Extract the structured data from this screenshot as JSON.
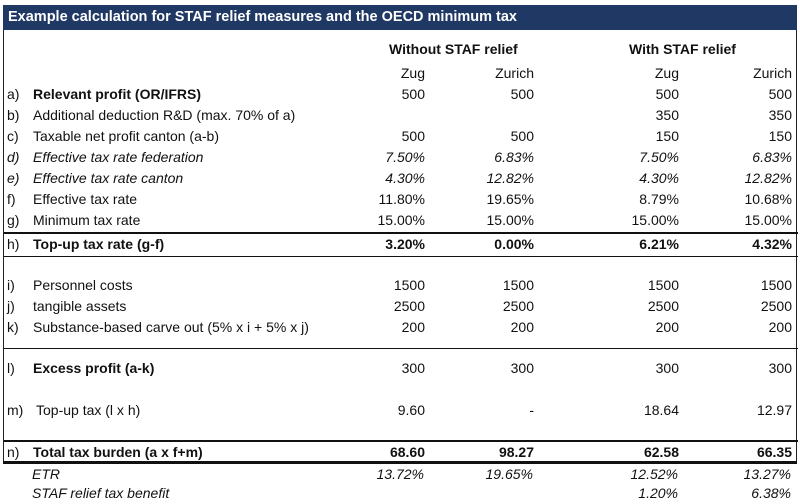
{
  "title": "Example calculation for STAF relief measures and the OECD minimum tax",
  "groups": {
    "without": "Without STAF relief",
    "with": "With STAF relief"
  },
  "columns": [
    "Zug",
    "Zurich",
    "Zug",
    "Zurich"
  ],
  "rows": [
    {
      "label": "a)",
      "text": "Relevant profit (OR/IFRS)",
      "values": [
        "500",
        "500",
        "500",
        "500"
      ],
      "style": "bold"
    },
    {
      "label": "b)",
      "text": "Additional deduction R&D (max. 70% of a)",
      "values": [
        "",
        "",
        "350",
        "350"
      ],
      "style": ""
    },
    {
      "label": "c)",
      "text": "Taxable net profit canton (a-b)",
      "values": [
        "500",
        "500",
        "150",
        "150"
      ],
      "style": ""
    },
    {
      "label": "d)",
      "text": "Effective tax rate federation",
      "values": [
        "7.50%",
        "6.83%",
        "7.50%",
        "6.83%"
      ],
      "style": "italic"
    },
    {
      "label": "e)",
      "text": "Effective tax rate canton",
      "values": [
        "4.30%",
        "12.82%",
        "4.30%",
        "12.82%"
      ],
      "style": "italic"
    },
    {
      "label": "f)",
      "text": "Effective tax rate",
      "values": [
        "11.80%",
        "19.65%",
        "8.79%",
        "10.68%"
      ],
      "style": ""
    },
    {
      "label": "g)",
      "text": "Minimum tax rate",
      "values": [
        "15.00%",
        "15.00%",
        "15.00%",
        "15.00%"
      ],
      "style": ""
    },
    {
      "label": "h)",
      "text": "Top-up tax rate (g-f)",
      "values": [
        "3.20%",
        "0.00%",
        "6.21%",
        "4.32%"
      ],
      "style": "bold"
    },
    {
      "label": "i)",
      "text": "Personnel costs",
      "values": [
        "1500",
        "1500",
        "1500",
        "1500"
      ],
      "style": ""
    },
    {
      "label": "j)",
      "text": "tangible assets",
      "values": [
        "2500",
        "2500",
        "2500",
        "2500"
      ],
      "style": ""
    },
    {
      "label": "k)",
      "text": "Substance-based carve out (5% x i + 5% x j)",
      "values": [
        "200",
        "200",
        "200",
        "200"
      ],
      "style": ""
    },
    {
      "label": "l)",
      "text": "Excess profit (a-k)",
      "values": [
        "300",
        "300",
        "300",
        "300"
      ],
      "style": "bold"
    },
    {
      "label": "m)",
      "text": "Top-up tax (l x h)",
      "values": [
        "9.60",
        "-",
        "18.64",
        "12.97"
      ],
      "style": ""
    },
    {
      "label": "n)",
      "text": "Total tax burden (a x f+m)",
      "values": [
        "68.60",
        "98.27",
        "62.58",
        "66.35"
      ],
      "style": "bold"
    }
  ],
  "footer": [
    {
      "text": "ETR",
      "values": [
        "13.72%",
        "19.65%",
        "12.52%",
        "13.27%"
      ]
    },
    {
      "text": "STAF relief tax benefit",
      "values": [
        "",
        "",
        "1.20%",
        "6.38%"
      ]
    }
  ]
}
